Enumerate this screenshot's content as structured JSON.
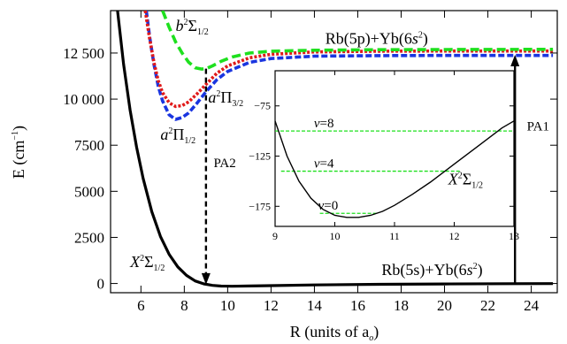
{
  "chart_data": {
    "type": "line",
    "xlabel": "R (units of a",
    "xlabel_sub": "o",
    "xlabel_close": ")",
    "ylabel": "E (cm",
    "ylabel_sup": "−1",
    "ylabel_close": ")",
    "xlim": [
      4.6,
      25.2
    ],
    "ylim": [
      -500,
      14800
    ],
    "xticks": [
      6,
      8,
      10,
      12,
      14,
      16,
      18,
      20,
      22,
      24
    ],
    "xtick_labels": [
      "6",
      "8",
      "10",
      "12",
      "14",
      "16",
      "18",
      "20",
      "22",
      "24"
    ],
    "yticks": [
      0,
      2500,
      5000,
      7500,
      10000,
      12500
    ],
    "ytick_labels": [
      "0",
      "2500",
      "5000",
      "7500",
      "10 000",
      "12 500"
    ],
    "colors": {
      "X": "#000000",
      "a1": "#1a35e0",
      "a3": "#e01a1a",
      "b": "#1ee01e",
      "levels": "#1ee01e"
    },
    "series": [
      {
        "key": "X",
        "x": [
          4.9,
          5.2,
          5.5,
          5.8,
          6.1,
          6.5,
          6.9,
          7.3,
          7.7,
          8.1,
          8.5,
          8.9,
          9.3,
          9.7,
          10.2,
          11,
          12,
          14,
          17,
          20,
          23,
          25
        ],
        "y": [
          15000,
          11900,
          9400,
          7400,
          5700,
          3900,
          2550,
          1580,
          900,
          440,
          140,
          -20,
          -100,
          -140,
          -150,
          -135,
          -115,
          -80,
          -45,
          -25,
          -12,
          -8
        ]
      },
      {
        "key": "a1",
        "x": [
          6.25,
          6.4,
          6.6,
          6.8,
          7.0,
          7.3,
          7.6,
          7.9,
          8.2,
          8.6,
          9.0,
          9.5,
          10,
          11,
          12,
          14,
          17,
          20,
          25
        ],
        "y": [
          14800,
          13400,
          11900,
          10700,
          9900,
          9150,
          8900,
          9000,
          9250,
          9800,
          10400,
          11050,
          11500,
          11990,
          12200,
          12330,
          12360,
          12370,
          12370
        ]
      },
      {
        "key": "a3",
        "x": [
          6.2,
          6.4,
          6.6,
          6.8,
          7.0,
          7.3,
          7.6,
          7.9,
          8.2,
          8.6,
          9.0,
          9.5,
          10,
          11,
          12,
          14,
          17,
          20,
          25
        ],
        "y": [
          14800,
          13300,
          12000,
          11000,
          10350,
          9800,
          9600,
          9650,
          9850,
          10300,
          10800,
          11400,
          11800,
          12240,
          12430,
          12560,
          12600,
          12610,
          12610
        ]
      },
      {
        "key": "b",
        "x": [
          7.0,
          7.3,
          7.6,
          7.9,
          8.2,
          8.5,
          8.8,
          9.0,
          9.3,
          9.7,
          10.2,
          11,
          12,
          14,
          17,
          20,
          25
        ],
        "y": [
          14800,
          13900,
          13100,
          12500,
          12000,
          11700,
          11630,
          11650,
          11800,
          12050,
          12280,
          12500,
          12600,
          12650,
          12680,
          12690,
          12700
        ]
      }
    ],
    "arrows": [
      {
        "key": "PA1",
        "label": "PA1",
        "x": 23.25,
        "y_from": -70,
        "y_to": 12400,
        "style": "solid"
      },
      {
        "key": "PA2",
        "label": "PA2",
        "x": 9.0,
        "y_from": 11650,
        "y_to": -60,
        "style": "dashed"
      }
    ],
    "annotations": {
      "b": {
        "main": "b",
        "sup": "2",
        "sym": "Σ",
        "sub": "1/2",
        "x": 7.6,
        "y": 13700
      },
      "a1": {
        "main": "a",
        "sup": "2",
        "sym": "Π",
        "sub": "1/2",
        "x": 6.9,
        "y": 7800
      },
      "a3": {
        "main": "a",
        "sup": "2",
        "sym": "Π",
        "sub": "3/2",
        "x": 9.1,
        "y": 9800
      },
      "X": {
        "main": "X",
        "sup": "2",
        "sym": "Σ",
        "sub": "1/2",
        "x": 5.5,
        "y": 900
      },
      "upper_asym": {
        "text_a": "Rb(5p)+Yb(6",
        "it": "s",
        "sup": "2",
        "close": ")",
        "x": 14.5,
        "y": 13000
      },
      "lower_asym": {
        "text_a": "Rb(5s)+Yb(6",
        "it": "s",
        "sup": "2",
        "close": ")",
        "x": 17.1,
        "y": 450
      },
      "PA1": {
        "x": 23.8,
        "y": 8300
      },
      "PA2": {
        "x": 9.35,
        "y": 6300
      }
    },
    "inset": {
      "xlim": [
        9,
        13
      ],
      "ylim": [
        -195,
        -40
      ],
      "xticks": [
        9,
        10,
        11,
        12,
        13
      ],
      "xtick_labels": [
        "9",
        "10",
        "11",
        "12",
        "13"
      ],
      "yticks": [
        -75,
        -125,
        -175
      ],
      "ytick_labels": [
        "−75",
        "−125",
        "−175"
      ],
      "curve": {
        "x": [
          9,
          9.2,
          9.4,
          9.6,
          9.8,
          10.0,
          10.2,
          10.4,
          10.6,
          10.8,
          11.0,
          11.3,
          11.6,
          12.0,
          12.4,
          12.8,
          13.0
        ],
        "y": [
          -90,
          -125,
          -150,
          -167,
          -178,
          -184,
          -186,
          -186,
          -184,
          -180,
          -174,
          -163,
          -151,
          -133,
          -115,
          -97,
          -90
        ]
      },
      "levels": [
        {
          "label_main": "ν",
          "label_val": "=8",
          "y": -100,
          "x_from": 9.0,
          "x_to": 13.0
        },
        {
          "label_main": "ν",
          "label_val": "=4",
          "y": -140,
          "x_from": 9.1,
          "x_to": 12.1
        },
        {
          "label_main": "ν",
          "label_val": "=0",
          "y": -182,
          "x_from": 9.75,
          "x_to": 10.7
        }
      ],
      "state_label": {
        "main": "X",
        "sup": "2",
        "sym": "Σ",
        "sub": "1/2",
        "x": 11.9,
        "y": -153
      }
    }
  }
}
